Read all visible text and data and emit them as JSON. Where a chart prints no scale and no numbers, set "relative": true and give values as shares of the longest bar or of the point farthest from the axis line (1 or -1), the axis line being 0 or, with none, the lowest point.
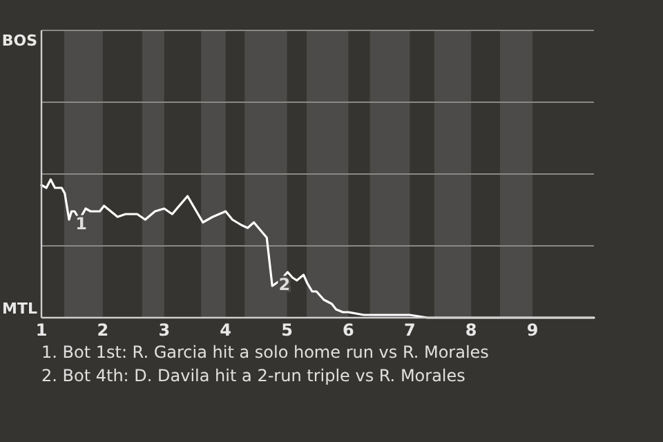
{
  "chart_data": {
    "type": "line",
    "relative": true,
    "x": [
      1,
      1.08,
      1.15,
      1.22,
      1.33,
      1.38,
      1.45,
      1.49,
      1.54,
      1.62,
      1.72,
      1.8,
      1.95,
      2.02,
      2.24,
      2.37,
      2.56,
      2.69,
      2.85,
      3,
      3.13,
      3.38,
      3.63,
      3.79,
      4,
      4.11,
      4.26,
      4.36,
      4.46,
      4.67,
      4.76,
      4.89,
      5.01,
      5.09,
      5.16,
      5.27,
      5.33,
      5.41,
      5.48,
      5.6,
      5.73,
      5.8,
      5.91,
      6,
      6.25,
      6.42,
      7,
      7.29,
      10
    ],
    "series": [
      {
        "color": "#ffffff",
        "values": [
          0.96,
          0.94,
          1,
          0.94,
          0.94,
          0.9,
          0.71,
          0.77,
          0.77,
          0.71,
          0.79,
          0.77,
          0.77,
          0.81,
          0.73,
          0.75,
          0.75,
          0.71,
          0.77,
          0.79,
          0.75,
          0.88,
          0.69,
          0.73,
          0.77,
          0.71,
          0.67,
          0.65,
          0.69,
          0.58,
          0.23,
          0.27,
          0.33,
          0.29,
          0.27,
          0.31,
          0.25,
          0.19,
          0.19,
          0.13,
          0.1,
          0.06,
          0.04,
          0.04,
          0.02,
          0.02,
          0.02,
          0,
          0
        ]
      }
    ],
    "xlim": [
      1,
      10
    ],
    "xticks": [
      1,
      2,
      3,
      4,
      5,
      6,
      7,
      8,
      9
    ],
    "ref_lines": [
      {
        "axis": "y",
        "value": 0.52,
        "color": "#8a8986"
      },
      {
        "axis": "y",
        "value": 1.04,
        "color": "#8a8986"
      },
      {
        "axis": "y",
        "value": 1.56,
        "color": "#8a8986"
      }
    ],
    "marker": "none",
    "line_style": "solid",
    "bands": [
      {
        "axis": "x",
        "from": 1.37,
        "to": 2,
        "color": "#4c4b49"
      },
      {
        "axis": "x",
        "from": 2.64,
        "to": 3,
        "color": "#4c4b49"
      },
      {
        "axis": "x",
        "from": 3.6,
        "to": 4,
        "color": "#4c4b49"
      },
      {
        "axis": "x",
        "from": 4.31,
        "to": 5,
        "color": "#4c4b49"
      },
      {
        "axis": "x",
        "from": 5.32,
        "to": 6,
        "color": "#4c4b49"
      },
      {
        "axis": "x",
        "from": 6.35,
        "to": 7,
        "color": "#4c4b49"
      },
      {
        "axis": "x",
        "from": 7.4,
        "to": 8,
        "color": "#4c4b49"
      },
      {
        "axis": "x",
        "from": 8.47,
        "to": 9,
        "color": "#4c4b49"
      }
    ],
    "annotations": [
      "BOS",
      "MTL",
      {
        "text": "1",
        "x": 1.49,
        "y": 0.77
      },
      {
        "text": "2",
        "x": 4.8,
        "y": 0.33
      },
      "1. Bot 1st: R. Garcia hit a solo home run vs R. Morales",
      "2. Bot 4th: D. Davila hit a 2-run triple vs R. Morales"
    ]
  }
}
